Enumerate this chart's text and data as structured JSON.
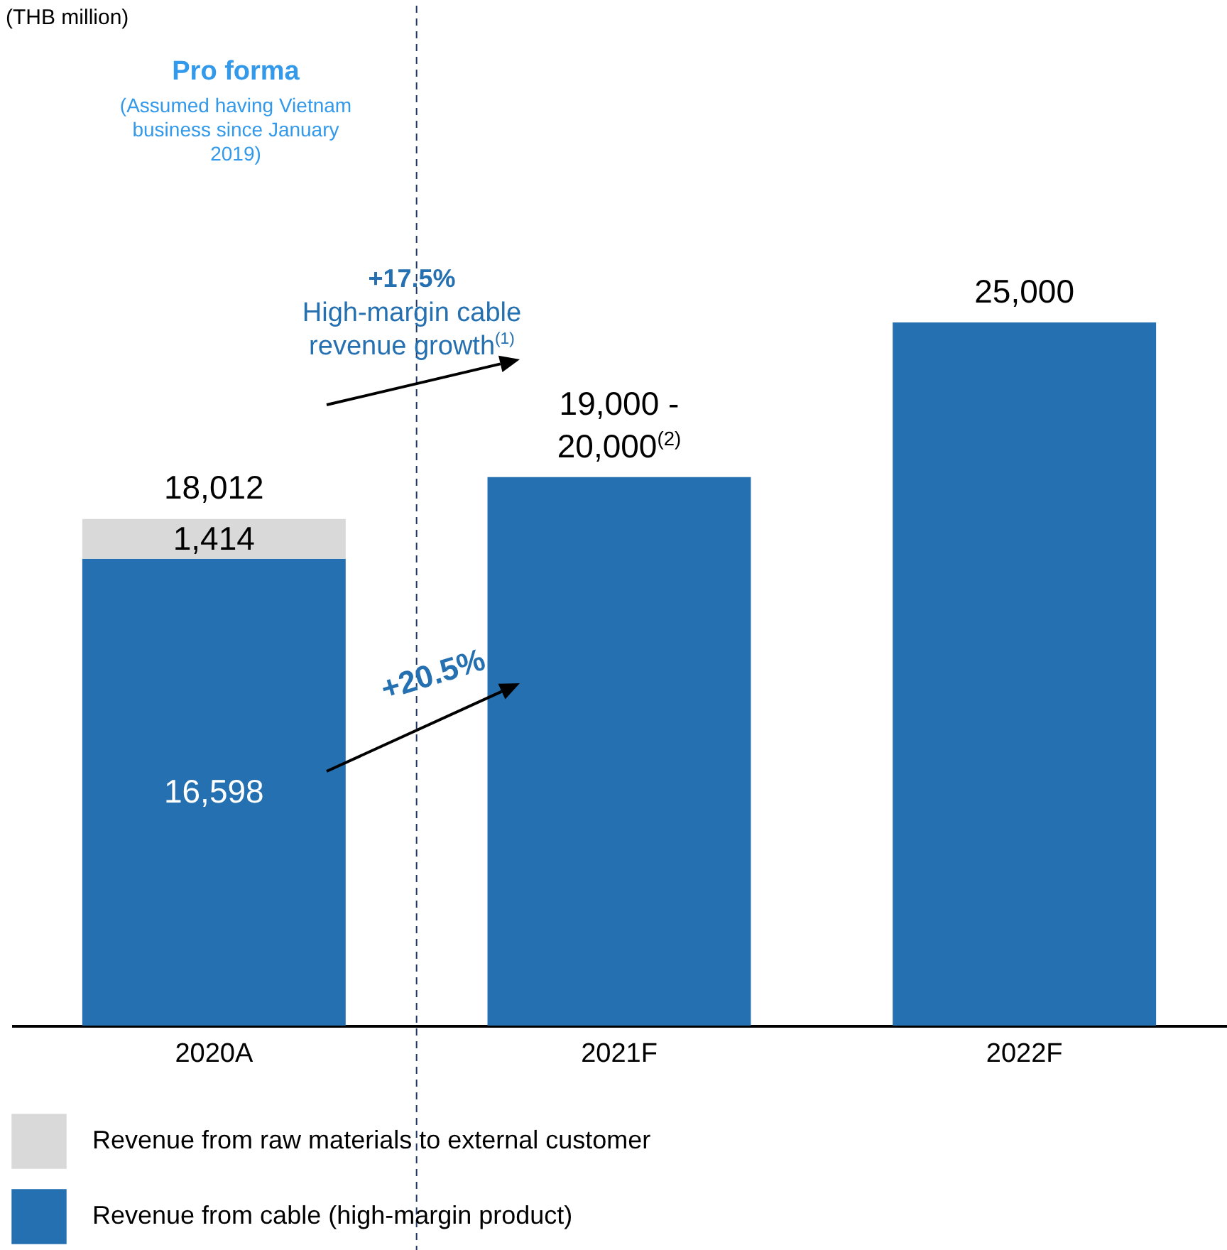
{
  "chart_data": {
    "type": "bar",
    "stacked": true,
    "categories": [
      "2020A",
      "2021F",
      "2022F"
    ],
    "series": [
      {
        "name": "Revenue from cable (high-margin product)",
        "color": "#2570b0",
        "values": [
          16598,
          19500,
          25000
        ],
        "value_labels": [
          "16,598",
          null,
          "25,000"
        ]
      },
      {
        "name": "Revenue from raw materials to external customer",
        "color": "#d9d9d9",
        "values": [
          1414,
          null,
          null
        ],
        "value_labels": [
          "1,414",
          null,
          null
        ]
      }
    ],
    "totals": [
      "18,012",
      null,
      null
    ],
    "ref_lines": [
      {
        "axis": "x",
        "value": "2020A",
        "color": "#1f3864",
        "line_style": "dashed"
      }
    ],
    "legend": "bottom",
    "annotations": [
      "(THB million)",
      "Pro forma",
      "(Assumed having Vietnam business since January 2019)",
      "+17.5%",
      "High-margin cable revenue growth$^{(1)}$",
      "+20.5%",
      {
        "text": "19,000 - 20,000$^{(2)}$",
        "x": "2021F",
        "y": 19500
      }
    ]
  }
}
